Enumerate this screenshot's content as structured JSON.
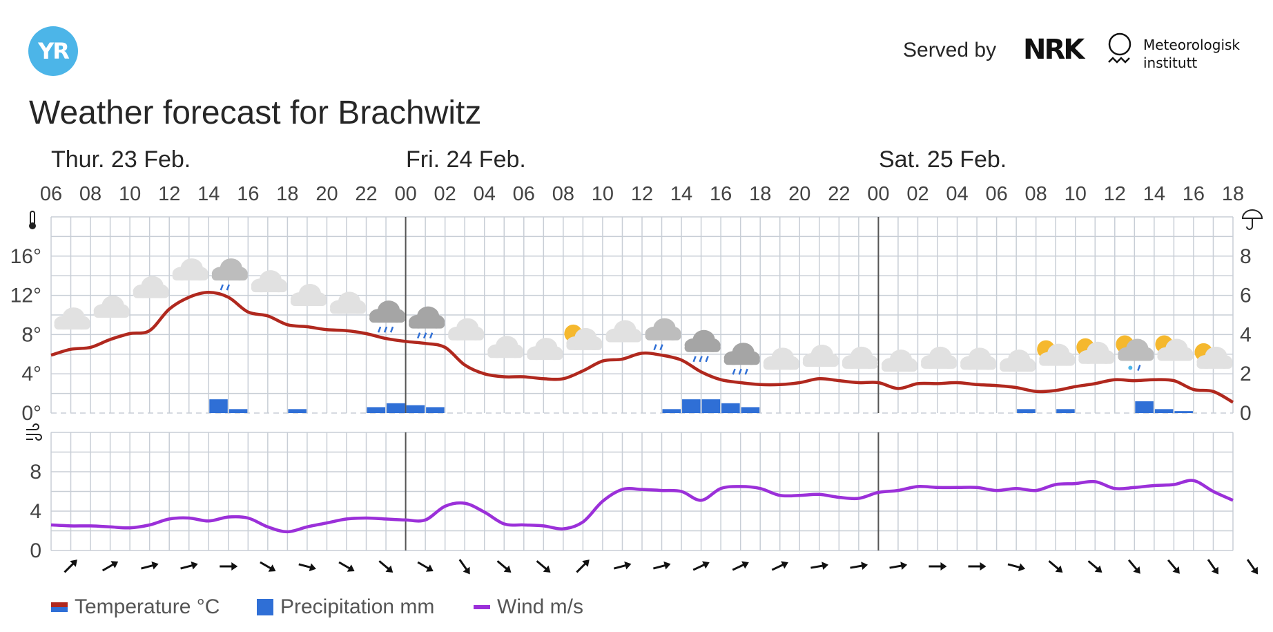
{
  "header": {
    "logo_text": "YR",
    "served_by": "Served by",
    "nrk_text": "NRK",
    "met_line1": "Meteorologisk",
    "met_line2": "institutt",
    "title": "Weather forecast for Brachwitz"
  },
  "days": [
    "Thur. 23 Feb.",
    "Fri. 24 Feb.",
    "Sat. 25 Feb."
  ],
  "legend": {
    "temperature": "Temperature °C",
    "precipitation": "Precipitation mm",
    "wind": "Wind m/s"
  },
  "colors": {
    "temperature": "#b0281e",
    "precipitation": "#2f6fd6",
    "wind": "#9b30d9",
    "grid": "#c8ced6",
    "logo": "#4cb5e8"
  },
  "chart_data": {
    "type": "line",
    "x_labels": [
      "06",
      "08",
      "10",
      "12",
      "14",
      "16",
      "18",
      "20",
      "22",
      "00",
      "02",
      "04",
      "06",
      "08",
      "10",
      "12",
      "14",
      "16",
      "18",
      "20",
      "22",
      "00",
      "02",
      "04",
      "06",
      "08",
      "10",
      "12",
      "14",
      "16",
      "18"
    ],
    "hours_from_start": [
      0,
      1,
      2,
      3,
      4,
      5,
      6,
      7,
      8,
      9,
      10,
      11,
      12,
      13,
      14,
      15,
      16,
      17,
      18,
      19,
      20,
      21,
      22,
      23,
      24,
      25,
      26,
      27,
      28,
      29,
      30,
      31,
      32,
      33,
      34,
      35,
      36,
      37,
      38,
      39,
      40,
      41,
      42,
      43,
      44,
      45,
      46,
      47,
      48,
      49,
      50,
      51,
      52,
      53,
      54,
      55,
      56,
      57,
      58,
      59,
      60
    ],
    "temperature_axis": {
      "ticks": [
        "0°",
        "4°",
        "8°",
        "12°",
        "16°"
      ],
      "ylim": [
        0,
        20
      ]
    },
    "precipitation_axis": {
      "ticks": [
        "0",
        "2",
        "4",
        "6",
        "8"
      ],
      "ylim": [
        0,
        10
      ]
    },
    "wind_axis": {
      "ticks": [
        "0",
        "4",
        "8"
      ],
      "ylim": [
        0,
        12
      ]
    },
    "series": [
      {
        "name": "Temperature °C",
        "axis": "temperature",
        "values": [
          5.9,
          6.5,
          6.7,
          7.5,
          8.1,
          8.4,
          10.6,
          11.8,
          12.3,
          11.8,
          10.3,
          9.9,
          9.0,
          8.8,
          8.5,
          8.4,
          8.1,
          7.6,
          7.3,
          7.1,
          6.7,
          4.9,
          4.0,
          3.7,
          3.7,
          3.5,
          3.5,
          4.3,
          5.3,
          5.5,
          6.1,
          5.9,
          5.4,
          4.2,
          3.4,
          3.1,
          2.9,
          2.9,
          3.1,
          3.5,
          3.3,
          3.1,
          3.1,
          2.5,
          3.0,
          3.0,
          3.1,
          2.9,
          2.8,
          2.6,
          2.2,
          2.3,
          2.7,
          3.0,
          3.4,
          3.3,
          3.4,
          3.3,
          2.4,
          2.2,
          1.1
        ]
      },
      {
        "name": "Precipitation mm",
        "axis": "precipitation",
        "type": "bar",
        "values": [
          0,
          0,
          0,
          0,
          0,
          0,
          0,
          0,
          0.7,
          0.2,
          0,
          0,
          0.2,
          0,
          0,
          0,
          0.3,
          0.5,
          0.4,
          0.3,
          0,
          0,
          0,
          0,
          0,
          0,
          0,
          0,
          0,
          0,
          0,
          0.2,
          0.7,
          0.7,
          0.5,
          0.3,
          0,
          0,
          0,
          0,
          0,
          0,
          0,
          0,
          0,
          0,
          0,
          0,
          0,
          0.2,
          0,
          0.2,
          0,
          0,
          0,
          0.6,
          0.2,
          0.1,
          0,
          0,
          0
        ]
      },
      {
        "name": "Wind m/s",
        "axis": "wind",
        "values": [
          2.6,
          2.5,
          2.5,
          2.4,
          2.3,
          2.6,
          3.2,
          3.3,
          3.0,
          3.4,
          3.3,
          2.4,
          1.9,
          2.4,
          2.8,
          3.2,
          3.3,
          3.2,
          3.1,
          3.1,
          4.5,
          4.8,
          3.9,
          2.7,
          2.6,
          2.5,
          2.2,
          2.9,
          5.0,
          6.2,
          6.2,
          6.1,
          6.0,
          5.1,
          6.3,
          6.5,
          6.3,
          5.6,
          5.6,
          5.7,
          5.4,
          5.3,
          5.9,
          6.1,
          6.5,
          6.4,
          6.4,
          6.4,
          6.1,
          6.3,
          6.1,
          6.7,
          6.8,
          7.0,
          6.3,
          6.4,
          6.6,
          6.7,
          7.1,
          6.0,
          5.1
        ]
      }
    ],
    "weather_symbols": [
      {
        "hour": 1,
        "icon": "cloudy",
        "temp": 9.5
      },
      {
        "hour": 3,
        "icon": "cloudy",
        "temp": 10.7
      },
      {
        "hour": 5,
        "icon": "cloudy",
        "temp": 12.7
      },
      {
        "hour": 7,
        "icon": "cloudy",
        "temp": 14.5
      },
      {
        "hour": 9,
        "icon": "light-rain",
        "temp": 14.5
      },
      {
        "hour": 11,
        "icon": "cloudy",
        "temp": 13.3
      },
      {
        "hour": 13,
        "icon": "cloudy",
        "temp": 11.9
      },
      {
        "hour": 15,
        "icon": "cloudy",
        "temp": 11.1
      },
      {
        "hour": 17,
        "icon": "rain",
        "temp": 10.2
      },
      {
        "hour": 19,
        "icon": "rain",
        "temp": 9.6
      },
      {
        "hour": 21,
        "icon": "cloudy",
        "temp": 8.4
      },
      {
        "hour": 23,
        "icon": "cloudy",
        "temp": 6.6
      },
      {
        "hour": 25,
        "icon": "cloudy",
        "temp": 6.4
      },
      {
        "hour": 27,
        "icon": "partly-cloudy",
        "temp": 7.4
      },
      {
        "hour": 29,
        "icon": "cloudy",
        "temp": 8.2
      },
      {
        "hour": 31,
        "icon": "light-rain",
        "temp": 8.4
      },
      {
        "hour": 33,
        "icon": "rain",
        "temp": 7.2
      },
      {
        "hour": 35,
        "icon": "rain",
        "temp": 5.9
      },
      {
        "hour": 37,
        "icon": "cloudy",
        "temp": 5.4
      },
      {
        "hour": 39,
        "icon": "cloudy",
        "temp": 5.7
      },
      {
        "hour": 41,
        "icon": "cloudy",
        "temp": 5.5
      },
      {
        "hour": 43,
        "icon": "cloudy",
        "temp": 5.2
      },
      {
        "hour": 45,
        "icon": "cloudy",
        "temp": 5.5
      },
      {
        "hour": 47,
        "icon": "cloudy",
        "temp": 5.4
      },
      {
        "hour": 49,
        "icon": "cloudy",
        "temp": 5.2
      },
      {
        "hour": 51,
        "icon": "partly-cloudy",
        "temp": 5.8
      },
      {
        "hour": 53,
        "icon": "partly-cloudy",
        "temp": 6.0
      },
      {
        "hour": 55,
        "icon": "sleet-showers",
        "temp": 6.3
      },
      {
        "hour": 57,
        "icon": "partly-cloudy",
        "temp": 6.3
      },
      {
        "hour": 59,
        "icon": "partly-cloudy",
        "temp": 5.5
      }
    ],
    "wind_direction_arrows_deg": [
      45,
      60,
      75,
      75,
      90,
      120,
      105,
      120,
      130,
      120,
      145,
      130,
      130,
      45,
      75,
      75,
      65,
      65,
      65,
      80,
      80,
      80,
      90,
      90,
      105,
      130,
      130,
      140,
      140,
      145,
      145
    ],
    "grid": true,
    "legend_position": "bottom-left"
  }
}
